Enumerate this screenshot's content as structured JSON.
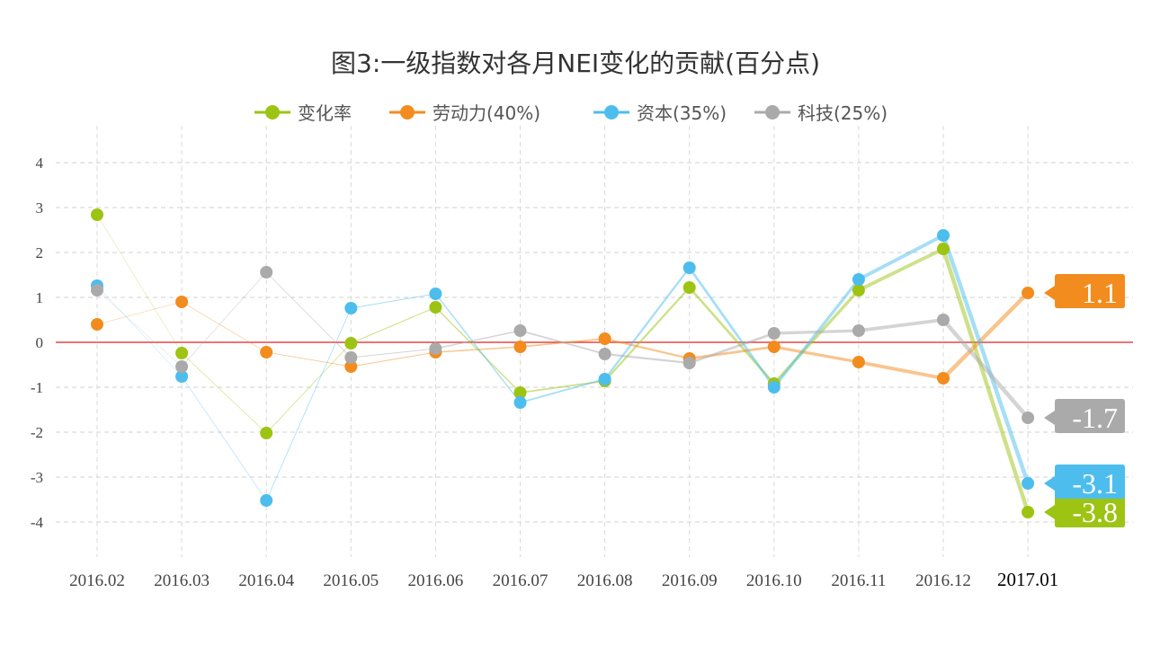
{
  "chart_data": {
    "type": "line",
    "title": "图3:一级指数对各月NEI变化的贡献(百分点)",
    "categories": [
      "2016.02",
      "2016.03",
      "2016.04",
      "2016.05",
      "2016.06",
      "2016.07",
      "2016.08",
      "2016.09",
      "2016.10",
      "2016.11",
      "2016.12",
      "2017.01"
    ],
    "ylim": [
      -4.8,
      4.8
    ],
    "yticks": [
      4,
      3,
      2,
      1,
      0,
      -1,
      -2,
      -3,
      -4
    ],
    "grid": true,
    "legend": "top",
    "zero_line_color": "#e02020",
    "series": [
      {
        "name": "变化率",
        "color": "#9dc313",
        "values": [
          2.84,
          -0.24,
          -2.02,
          -0.02,
          0.78,
          -1.12,
          -0.86,
          1.22,
          -0.92,
          1.16,
          2.08,
          -3.78
        ],
        "end_label": "-3.8"
      },
      {
        "name": "劳动力(40%)",
        "color": "#f28c1f",
        "values": [
          0.4,
          0.9,
          -0.22,
          -0.54,
          -0.22,
          -0.1,
          0.08,
          -0.36,
          -0.1,
          -0.44,
          -0.8,
          1.1
        ],
        "end_label": "1.1"
      },
      {
        "name": "资本(35%)",
        "color": "#4dbdee",
        "values": [
          1.26,
          -0.76,
          -3.52,
          0.76,
          1.08,
          -1.34,
          -0.82,
          1.66,
          -1.0,
          1.4,
          2.38,
          -3.14
        ],
        "end_label": "-3.1"
      },
      {
        "name": "科技(25%)",
        "color": "#aaaaaa",
        "values": [
          1.16,
          -0.54,
          1.56,
          -0.34,
          -0.14,
          0.26,
          -0.26,
          -0.46,
          0.2,
          0.26,
          0.5,
          -1.68
        ],
        "end_label": "-1.7"
      }
    ]
  }
}
